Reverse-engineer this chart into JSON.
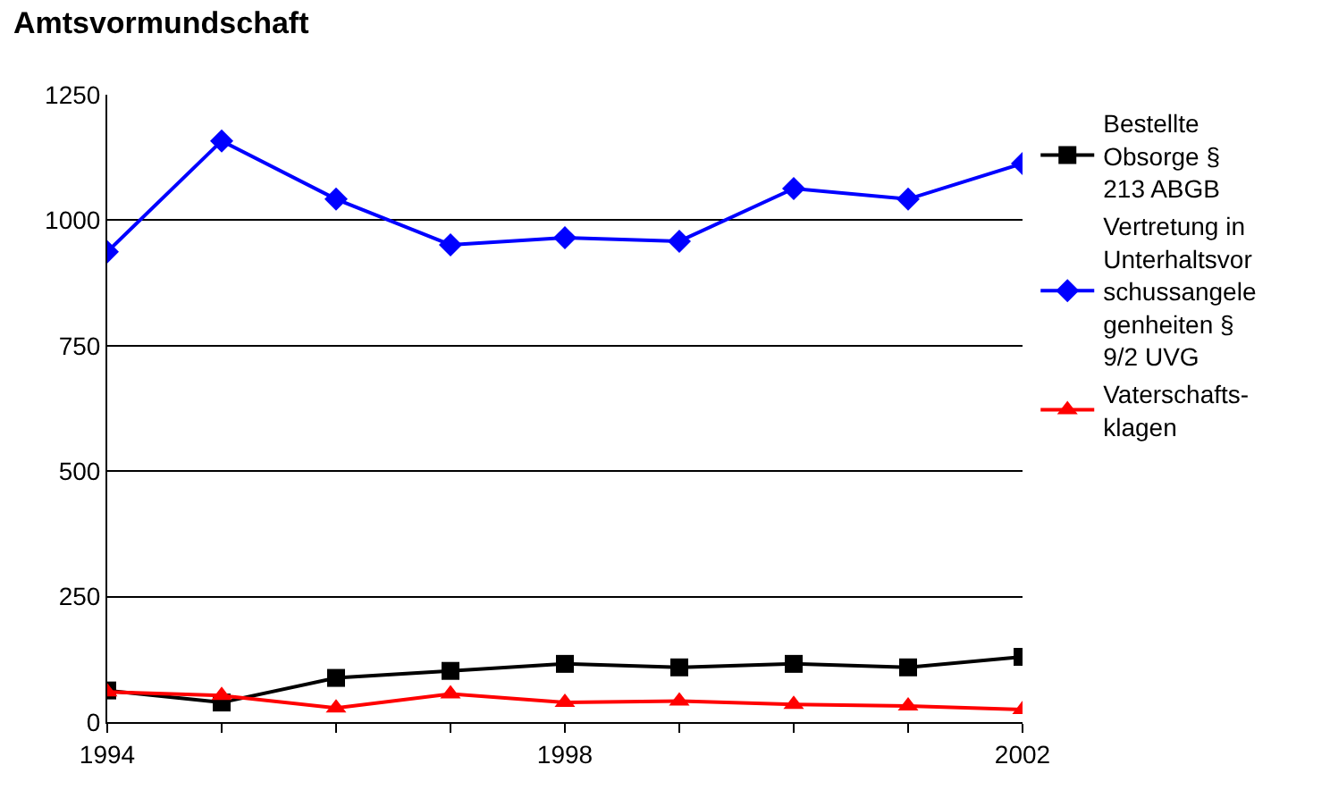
{
  "chart_data": {
    "type": "line",
    "title": "Amtsvormundschaft",
    "x": [
      1994,
      1995,
      1996,
      1997,
      1998,
      1999,
      2000,
      2001,
      2002
    ],
    "series": [
      {
        "name": "Bestellte\nObsorge §\n213 ABGB",
        "color": "#000000",
        "marker": "square",
        "values": [
          63,
          39,
          88,
          102,
          116,
          109,
          116,
          109,
          130
        ]
      },
      {
        "name": "Vertretung in\nUnterhaltsvor\nschussangele\ngenheiten §\n9/2 UVG",
        "color": "#0000ff",
        "marker": "diamond",
        "values": [
          937,
          1158,
          1042,
          951,
          965,
          958,
          1063,
          1042,
          1113
        ]
      },
      {
        "name": "Vaterschafts-\nklagen",
        "color": "#ff0000",
        "marker": "triangle",
        "values": [
          60,
          53,
          28,
          56,
          39,
          42,
          35,
          32,
          25
        ]
      }
    ],
    "xlim": [
      1994,
      2002
    ],
    "xticks": [
      1994,
      {
        "value": 1995,
        "label": null
      },
      {
        "value": 1996,
        "label": null
      },
      {
        "value": 1997,
        "label": null
      },
      1998,
      {
        "value": 1999,
        "label": null
      },
      {
        "value": 2000,
        "label": null
      },
      {
        "value": 2001,
        "label": null
      },
      2002
    ],
    "ylim": [
      0,
      1250
    ],
    "yticks": [
      0,
      250,
      500,
      750,
      1000,
      1250
    ],
    "grid": "y",
    "legend": "right",
    "line_style": "solid"
  }
}
